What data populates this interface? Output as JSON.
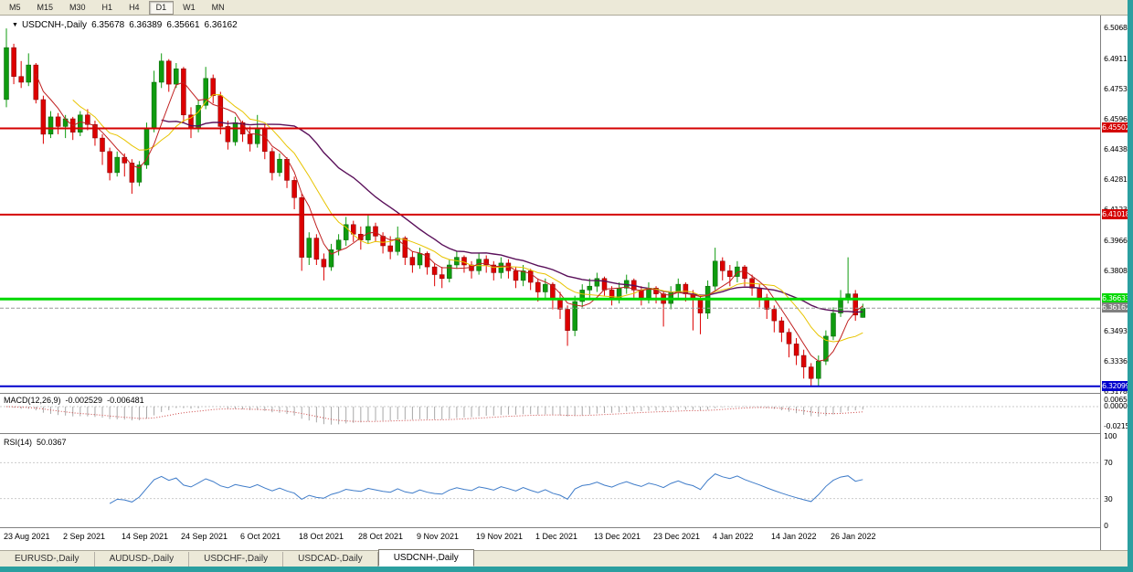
{
  "toolbar": {
    "timeframes": [
      "M5",
      "M15",
      "M30",
      "H1",
      "H4",
      "D1",
      "W1",
      "MN"
    ],
    "active_timeframe": "D1"
  },
  "icons": {
    "dropdown": "▼"
  },
  "chart_header": {
    "symbol": "USDCNH-,Daily",
    "open": "6.35678",
    "high": "6.36389",
    "low": "6.35661",
    "close": "6.36162"
  },
  "price_axis": {
    "labels": [
      "6.50685",
      "6.49110",
      "6.47535",
      "6.45960",
      "6.44385",
      "6.42810",
      "6.41235",
      "6.39660",
      "6.38085",
      "6.36510",
      "6.34935",
      "6.33360",
      "6.31785"
    ]
  },
  "levels": [
    {
      "name": "resistance-upper",
      "price": 6.45502,
      "label": "6.45502",
      "color": "#d40000",
      "thickness": 2,
      "dashed": false
    },
    {
      "name": "resistance-lower",
      "price": 6.41018,
      "label": "6.41018",
      "color": "#d40000",
      "thickness": 2,
      "dashed": false
    },
    {
      "name": "support-green",
      "price": 6.36633,
      "label": "6.36633",
      "color": "#00d800",
      "thickness": 3,
      "dashed": false
    },
    {
      "name": "current-price",
      "price": 6.36162,
      "label": "6.36162",
      "color": "#9a9a9a",
      "thickness": 1,
      "dashed": true,
      "badge": "#808080"
    },
    {
      "name": "support-blue",
      "price": 6.32099,
      "label": "6.32099",
      "color": "#0000cd",
      "thickness": 2,
      "dashed": false
    }
  ],
  "chart_data": {
    "type": "candlestick",
    "symbol": "USDCNH",
    "timeframe": "Daily",
    "y_range": [
      6.318,
      6.5132
    ],
    "bull_color": "#0f9b0f",
    "bear_color": "#dd0000",
    "x_labels": [
      "23 Aug 2021",
      "2 Sep 2021",
      "14 Sep 2021",
      "24 Sep 2021",
      "6 Oct 2021",
      "18 Oct 2021",
      "28 Oct 2021",
      "9 Nov 2021",
      "19 Nov 2021",
      "1 Dec 2021",
      "13 Dec 2021",
      "23 Dec 2021",
      "4 Jan 2022",
      "14 Jan 2022",
      "26 Jan 2022"
    ],
    "x_label_indices": [
      0,
      8,
      16,
      24,
      32,
      40,
      48,
      56,
      64,
      72,
      80,
      88,
      96,
      104,
      112
    ],
    "moving_averages": [
      {
        "period": 5,
        "color": "#c02020",
        "width": 1
      },
      {
        "period": 10,
        "color": "#e8c400",
        "width": 1
      },
      {
        "period": 22,
        "color": "#5a105a",
        "width": 1.4
      }
    ],
    "ohlc": [
      [
        6.47,
        6.507,
        6.466,
        6.497
      ],
      [
        6.497,
        6.499,
        6.478,
        6.482
      ],
      [
        6.482,
        6.49,
        6.476,
        6.479
      ],
      [
        6.479,
        6.494,
        6.477,
        6.488
      ],
      [
        6.488,
        6.489,
        6.468,
        6.47
      ],
      [
        6.47,
        6.472,
        6.447,
        6.452
      ],
      [
        6.452,
        6.464,
        6.45,
        6.461
      ],
      [
        6.461,
        6.463,
        6.452,
        6.456
      ],
      [
        6.456,
        6.462,
        6.45,
        6.46
      ],
      [
        6.46,
        6.461,
        6.449,
        6.453
      ],
      [
        6.453,
        6.464,
        6.451,
        6.462
      ],
      [
        6.462,
        6.465,
        6.454,
        6.457
      ],
      [
        6.457,
        6.459,
        6.446,
        6.45
      ],
      [
        6.45,
        6.452,
        6.436,
        6.443
      ],
      [
        6.443,
        6.445,
        6.428,
        6.432
      ],
      [
        6.432,
        6.443,
        6.43,
        6.44
      ],
      [
        6.44,
        6.442,
        6.43,
        6.437
      ],
      [
        6.437,
        6.439,
        6.421,
        6.427
      ],
      [
        6.427,
        6.438,
        6.425,
        6.436
      ],
      [
        6.436,
        6.458,
        6.434,
        6.455
      ],
      [
        6.455,
        6.485,
        6.453,
        6.479
      ],
      [
        6.479,
        6.494,
        6.476,
        6.49
      ],
      [
        6.49,
        6.491,
        6.474,
        6.478
      ],
      [
        6.478,
        6.489,
        6.476,
        6.486
      ],
      [
        6.486,
        6.487,
        6.458,
        6.462
      ],
      [
        6.462,
        6.466,
        6.45,
        6.455
      ],
      [
        6.455,
        6.47,
        6.453,
        6.467
      ],
      [
        6.467,
        6.487,
        6.465,
        6.481
      ],
      [
        6.481,
        6.483,
        6.468,
        6.472
      ],
      [
        6.472,
        6.474,
        6.452,
        6.456
      ],
      [
        6.456,
        6.459,
        6.444,
        6.448
      ],
      [
        6.448,
        6.461,
        6.446,
        6.458
      ],
      [
        6.458,
        6.459,
        6.448,
        6.452
      ],
      [
        6.452,
        6.456,
        6.443,
        6.447
      ],
      [
        6.447,
        6.462,
        6.445,
        6.455
      ],
      [
        6.455,
        6.457,
        6.439,
        6.443
      ],
      [
        6.443,
        6.445,
        6.428,
        6.432
      ],
      [
        6.432,
        6.442,
        6.43,
        6.439
      ],
      [
        6.439,
        6.44,
        6.424,
        6.428
      ],
      [
        6.428,
        6.43,
        6.413,
        6.419
      ],
      [
        6.419,
        6.421,
        6.381,
        6.388
      ],
      [
        6.388,
        6.401,
        6.384,
        6.398
      ],
      [
        6.398,
        6.4,
        6.384,
        6.387
      ],
      [
        6.387,
        6.39,
        6.376,
        6.383
      ],
      [
        6.383,
        6.395,
        6.381,
        6.392
      ],
      [
        6.392,
        6.4,
        6.389,
        6.397
      ],
      [
        6.397,
        6.409,
        6.394,
        6.405
      ],
      [
        6.405,
        6.407,
        6.396,
        6.4
      ],
      [
        6.4,
        6.404,
        6.392,
        6.397
      ],
      [
        6.397,
        6.41,
        6.395,
        6.404
      ],
      [
        6.404,
        6.406,
        6.396,
        6.399
      ],
      [
        6.399,
        6.401,
        6.39,
        6.394
      ],
      [
        6.394,
        6.399,
        6.387,
        6.391
      ],
      [
        6.391,
        6.404,
        6.389,
        6.398
      ],
      [
        6.398,
        6.399,
        6.384,
        6.388
      ],
      [
        6.388,
        6.391,
        6.38,
        6.384
      ],
      [
        6.384,
        6.393,
        6.382,
        6.39
      ],
      [
        6.39,
        6.391,
        6.379,
        6.383
      ],
      [
        6.383,
        6.385,
        6.373,
        6.379
      ],
      [
        6.379,
        6.383,
        6.372,
        6.377
      ],
      [
        6.377,
        6.387,
        6.375,
        6.384
      ],
      [
        6.384,
        6.391,
        6.382,
        6.388
      ],
      [
        6.388,
        6.389,
        6.38,
        6.384
      ],
      [
        6.384,
        6.386,
        6.377,
        6.381
      ],
      [
        6.381,
        6.39,
        6.379,
        6.387
      ],
      [
        6.387,
        6.389,
        6.38,
        6.384
      ],
      [
        6.384,
        6.386,
        6.376,
        6.38
      ],
      [
        6.38,
        6.388,
        6.377,
        6.385
      ],
      [
        6.385,
        6.387,
        6.377,
        6.381
      ],
      [
        6.381,
        6.383,
        6.372,
        6.376
      ],
      [
        6.376,
        6.384,
        6.373,
        6.381
      ],
      [
        6.381,
        6.382,
        6.371,
        6.375
      ],
      [
        6.375,
        6.377,
        6.365,
        6.37
      ],
      [
        6.37,
        6.377,
        6.366,
        6.374
      ],
      [
        6.374,
        6.375,
        6.361,
        6.366
      ],
      [
        6.366,
        6.37,
        6.356,
        6.361
      ],
      [
        6.361,
        6.363,
        6.342,
        6.35
      ],
      [
        6.35,
        6.368,
        6.347,
        6.365
      ],
      [
        6.365,
        6.374,
        6.362,
        6.371
      ],
      [
        6.371,
        6.377,
        6.367,
        6.373
      ],
      [
        6.373,
        6.38,
        6.37,
        6.377
      ],
      [
        6.377,
        6.378,
        6.368,
        6.371
      ],
      [
        6.371,
        6.373,
        6.363,
        6.367
      ],
      [
        6.367,
        6.375,
        6.364,
        6.372
      ],
      [
        6.372,
        6.379,
        6.369,
        6.376
      ],
      [
        6.376,
        6.377,
        6.367,
        6.371
      ],
      [
        6.371,
        6.373,
        6.363,
        6.367
      ],
      [
        6.367,
        6.375,
        6.364,
        6.372
      ],
      [
        6.372,
        6.373,
        6.364,
        6.369
      ],
      [
        6.369,
        6.37,
        6.352,
        6.364
      ],
      [
        6.364,
        6.373,
        6.361,
        6.37
      ],
      [
        6.37,
        6.377,
        6.367,
        6.374
      ],
      [
        6.374,
        6.375,
        6.365,
        6.369
      ],
      [
        6.369,
        6.371,
        6.35,
        6.366
      ],
      [
        6.366,
        6.368,
        6.348,
        6.359
      ],
      [
        6.359,
        6.376,
        6.356,
        6.373
      ],
      [
        6.373,
        6.393,
        6.371,
        6.386
      ],
      [
        6.386,
        6.388,
        6.376,
        6.381
      ],
      [
        6.381,
        6.384,
        6.373,
        6.378
      ],
      [
        6.378,
        6.386,
        6.375,
        6.383
      ],
      [
        6.383,
        6.384,
        6.373,
        6.377
      ],
      [
        6.377,
        6.379,
        6.368,
        6.372
      ],
      [
        6.372,
        6.374,
        6.362,
        6.367
      ],
      [
        6.367,
        6.369,
        6.356,
        6.361
      ],
      [
        6.361,
        6.363,
        6.349,
        6.355
      ],
      [
        6.355,
        6.357,
        6.344,
        6.349
      ],
      [
        6.349,
        6.351,
        6.336,
        6.343
      ],
      [
        6.343,
        6.346,
        6.332,
        6.337
      ],
      [
        6.337,
        6.34,
        6.325,
        6.331
      ],
      [
        6.331,
        6.333,
        6.3209,
        6.325
      ],
      [
        6.325,
        6.337,
        6.321,
        6.334
      ],
      [
        6.334,
        6.35,
        6.332,
        6.347
      ],
      [
        6.347,
        6.362,
        6.345,
        6.359
      ],
      [
        6.359,
        6.371,
        6.357,
        6.366
      ],
      [
        6.366,
        6.388,
        6.364,
        6.369
      ],
      [
        6.369,
        6.371,
        6.355,
        6.358
      ],
      [
        6.35678,
        6.36389,
        6.35661,
        6.36162
      ]
    ]
  },
  "macd_panel": {
    "label": "MACD(12,26,9)",
    "value1": "-0.002529",
    "value2": "-0.006481",
    "axis_labels": [
      "0.00658",
      "0.0000",
      "-0.02159"
    ],
    "histogram_color": "#a8a8a8",
    "signal_color": "#cc4444"
  },
  "rsi_panel": {
    "label": "RSI(14)",
    "value": "50.0367",
    "axis_labels": [
      "100",
      "70",
      "30",
      "0"
    ],
    "level_lines": [
      70,
      30
    ],
    "line_color": "#3f7cc9"
  },
  "tabs": [
    "EURUSD-,Daily",
    "AUDUSD-,Daily",
    "USDCHF-,Daily",
    "USDCAD-,Daily",
    "USDCNH-,Daily"
  ],
  "active_tab": "USDCNH-,Daily",
  "colors": {
    "window_border": "#2b9fa0",
    "toolbar_bg": "#ece9d8",
    "panel_bg": "#ffffff",
    "separator": "#808080"
  }
}
